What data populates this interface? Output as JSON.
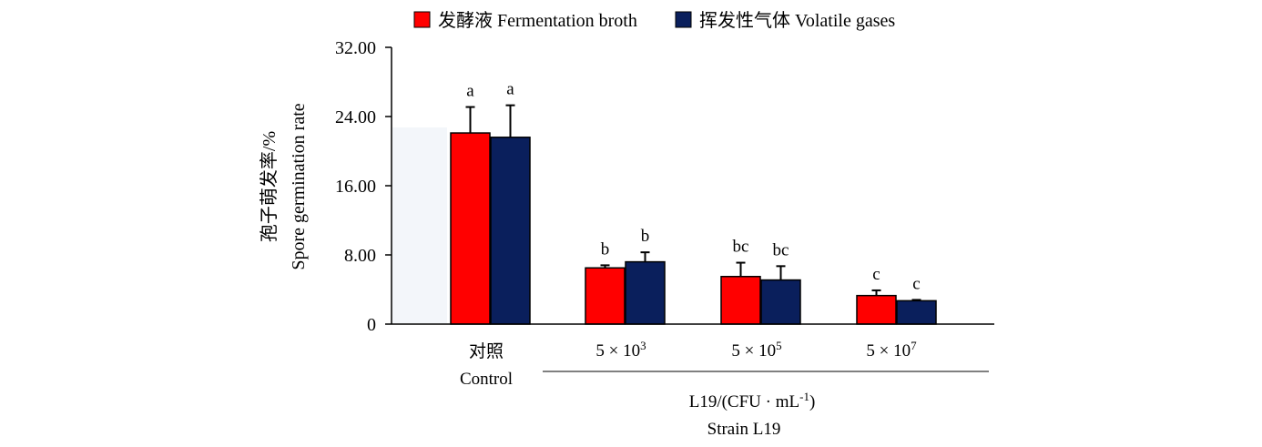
{
  "chart_data": {
    "type": "bar",
    "ylabel": [
      "孢子萌发率/%",
      "Spore germination rate"
    ],
    "yticks": [
      "0",
      "8.00",
      "16.00",
      "24.00",
      "32.00"
    ],
    "ylim": [
      0,
      32
    ],
    "categories": [
      {
        "label": [
          "对照",
          "Control"
        ]
      },
      {
        "label": [
          "5 × 10",
          "3"
        ]
      },
      {
        "label": [
          "5 × 10",
          "5"
        ]
      },
      {
        "label": [
          "5 × 10",
          "7"
        ]
      }
    ],
    "group_label": [
      "L19/(CFU · mL",
      "-1",
      ")",
      "Strain L19"
    ],
    "series": [
      {
        "name": "发酵液 Fermentation broth",
        "color": "#ff0000",
        "values": [
          22.1,
          6.5,
          5.5,
          3.3
        ],
        "errors": [
          3.0,
          0.3,
          1.6,
          0.6
        ],
        "sig": [
          "a",
          "b",
          "bc",
          "c"
        ]
      },
      {
        "name": "挥发性气体 Volatile gases",
        "color": "#0a1f5c",
        "values": [
          21.6,
          7.2,
          5.1,
          2.7
        ],
        "errors": [
          3.7,
          1.1,
          1.6,
          0.1
        ],
        "sig": [
          "a",
          "b",
          "bc",
          "c"
        ]
      }
    ]
  }
}
